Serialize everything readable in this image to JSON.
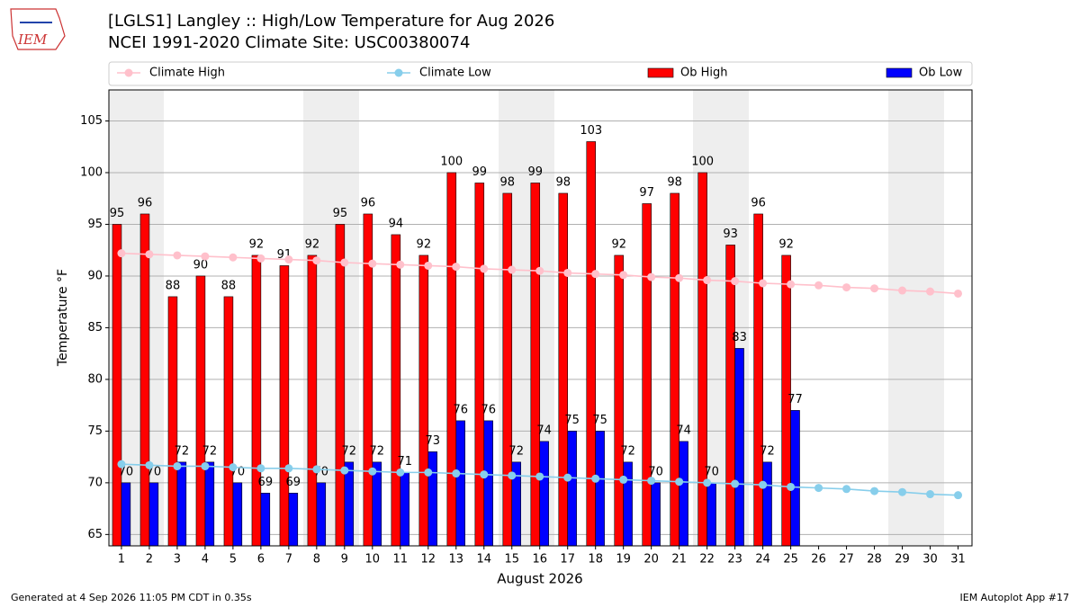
{
  "chart_data": {
    "type": "bar",
    "logo_text": "IEM",
    "title": "[LGLS1] Langley :: High/Low Temperature for Aug 2026",
    "subtitle": "NCEI 1991-2020 Climate Site: USC00380074",
    "x_label": "August 2026",
    "y_label": "Temperature °F",
    "footer_left": "Generated at 4 Sep 2026 11:05 PM CDT in 0.35s",
    "footer_right": "IEM Autoplot App #17",
    "x": [
      1,
      2,
      3,
      4,
      5,
      6,
      7,
      8,
      9,
      10,
      11,
      12,
      13,
      14,
      15,
      16,
      17,
      18,
      19,
      20,
      21,
      22,
      23,
      24,
      25,
      26,
      27,
      28,
      29,
      30,
      31
    ],
    "xlim": [
      0.55,
      31.5
    ],
    "xticks": [
      1,
      2,
      3,
      4,
      5,
      6,
      7,
      8,
      9,
      10,
      11,
      12,
      13,
      14,
      15,
      16,
      17,
      18,
      19,
      20,
      21,
      22,
      23,
      24,
      25,
      26,
      27,
      28,
      29,
      30,
      31
    ],
    "ylim": [
      63.9,
      108.0
    ],
    "yticks": [
      65,
      70,
      75,
      80,
      85,
      90,
      95,
      100,
      105
    ],
    "grid": true,
    "series": [
      {
        "name": "Climate High",
        "type": "line",
        "color": "#ffc0cb",
        "values": [
          92.2,
          92.1,
          92.0,
          91.9,
          91.8,
          91.7,
          91.6,
          91.5,
          91.3,
          91.2,
          91.1,
          91.0,
          90.9,
          90.7,
          90.6,
          90.5,
          90.3,
          90.2,
          90.1,
          89.9,
          89.8,
          89.6,
          89.5,
          89.3,
          89.2,
          89.1,
          88.9,
          88.8,
          88.6,
          88.5,
          88.3
        ]
      },
      {
        "name": "Climate Low",
        "type": "line",
        "color": "#87ceeb",
        "values": [
          71.8,
          71.7,
          71.6,
          71.6,
          71.5,
          71.4,
          71.4,
          71.3,
          71.2,
          71.1,
          71.0,
          71.0,
          70.9,
          70.8,
          70.7,
          70.6,
          70.5,
          70.4,
          70.3,
          70.2,
          70.1,
          70.0,
          69.9,
          69.8,
          69.6,
          69.5,
          69.4,
          69.2,
          69.1,
          68.9,
          68.8
        ]
      },
      {
        "name": "Ob High",
        "type": "bar",
        "color": "#ff0000",
        "values": [
          95,
          96,
          88,
          90,
          88,
          92,
          91,
          92,
          95,
          96,
          94,
          92,
          100,
          99,
          98,
          99,
          98,
          103,
          92,
          97,
          98,
          100,
          93,
          96,
          92,
          null,
          null,
          null,
          null,
          null,
          null
        ]
      },
      {
        "name": "Ob Low",
        "type": "bar",
        "color": "#0000ff",
        "values": [
          70,
          70,
          72,
          72,
          70,
          69,
          69,
          70,
          72,
          72,
          71,
          73,
          76,
          76,
          72,
          74,
          75,
          75,
          72,
          70,
          74,
          70,
          83,
          72,
          77,
          null,
          null,
          null,
          null,
          null,
          null
        ]
      }
    ]
  }
}
